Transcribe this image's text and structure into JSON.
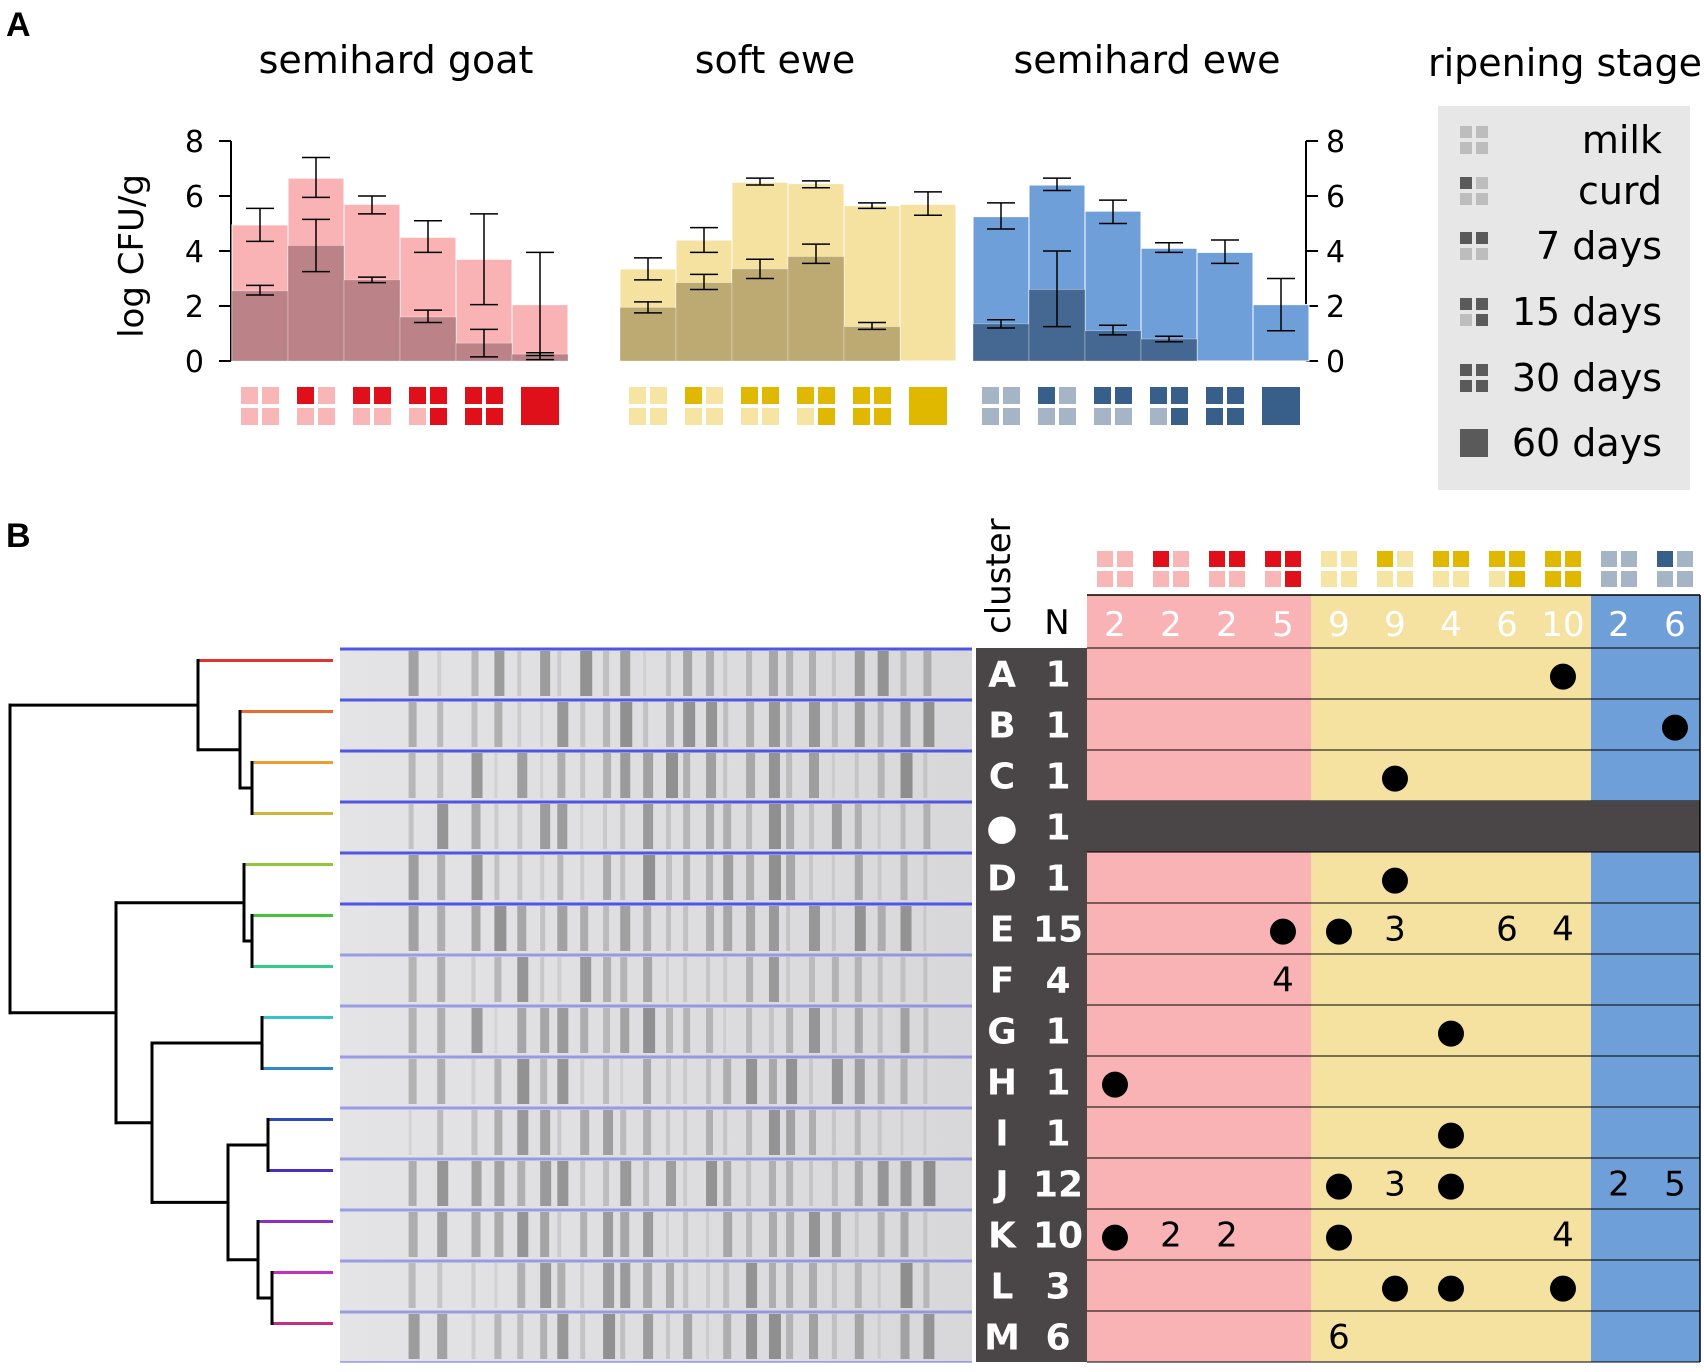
{
  "panels": {
    "a": "A",
    "b": "B"
  },
  "colors": {
    "goat": "#e0101a",
    "goat_light": "#f9b6b6",
    "soft": "#e0b800",
    "soft_light": "#f5e4a2",
    "semi": "#385f89",
    "semi_light": "#a5b5c6",
    "bar_goat": "#f9b3b5",
    "bar_goat_dark": "#bb8288",
    "bar_soft": "#f5e2a1",
    "bar_soft_dark": "#bdaa73",
    "bar_semi": "#6f9fd8",
    "bar_semi_dark": "#446891",
    "legend_bg": "#e7e7e7",
    "legend_icon": "#5a5a5a",
    "legend_icon_light": "#bdbdbd",
    "dark_cell": "#4a4546",
    "row_goat": "#f9b3b5",
    "row_soft": "#f5e2a1",
    "row_semi": "#6f9fd8"
  },
  "chart_data": [
    {
      "type": "bar",
      "title": "semihard goat",
      "ylabel": "log CFU/g",
      "ylim": [
        0,
        8
      ],
      "yticks": [
        0,
        2,
        4,
        6,
        8
      ],
      "categories": [
        "milk",
        "curd",
        "7 days",
        "15 days",
        "30 days",
        "60 days"
      ],
      "series": [
        {
          "name": "upper",
          "values": [
            4.95,
            6.65,
            5.7,
            4.5,
            3.7,
            2.05
          ],
          "err_low": [
            4.35,
            5.95,
            5.35,
            3.95,
            2.05,
            0.05
          ],
          "err_high": [
            5.55,
            7.4,
            6.0,
            5.1,
            5.35,
            3.95
          ]
        },
        {
          "name": "lower",
          "values": [
            2.55,
            4.2,
            2.95,
            1.6,
            0.65,
            0.25
          ],
          "err_low": [
            2.4,
            3.25,
            2.85,
            1.4,
            0.15,
            0.2
          ],
          "err_high": [
            2.75,
            5.15,
            3.05,
            1.85,
            1.15,
            0.3
          ]
        }
      ],
      "stage_icons": [
        "milk",
        "curd",
        "7 days",
        "15 days",
        "30 days",
        "60 days"
      ]
    },
    {
      "type": "bar",
      "title": "soft ewe",
      "ylim": [
        0,
        8
      ],
      "categories": [
        "milk",
        "curd",
        "7 days",
        "15 days",
        "30 days",
        "60 days"
      ],
      "series": [
        {
          "name": "upper",
          "values": [
            3.35,
            4.4,
            6.5,
            6.45,
            5.65,
            5.7
          ],
          "err_low": [
            2.95,
            3.95,
            6.4,
            6.3,
            5.55,
            5.3
          ],
          "err_high": [
            3.75,
            4.85,
            6.65,
            6.55,
            5.75,
            6.15
          ]
        },
        {
          "name": "lower",
          "values": [
            1.95,
            2.85,
            3.35,
            3.8,
            1.25,
            null
          ],
          "err_low": [
            1.75,
            2.6,
            3.0,
            3.55,
            1.15,
            null
          ],
          "err_high": [
            2.15,
            3.15,
            3.7,
            4.25,
            1.4,
            null
          ]
        }
      ],
      "stage_icons": [
        "milk",
        "curd",
        "7 days",
        "15 days",
        "30 days",
        "60 days"
      ]
    },
    {
      "type": "bar",
      "title": "semihard ewe",
      "ylim": [
        0,
        8
      ],
      "yticks": [
        0,
        2,
        4,
        6,
        8
      ],
      "categories": [
        "milk",
        "curd",
        "7 days",
        "15 days",
        "30 days",
        "60 days"
      ],
      "series": [
        {
          "name": "upper",
          "values": [
            5.25,
            6.4,
            5.45,
            4.1,
            3.95,
            2.05
          ],
          "err_low": [
            4.8,
            6.2,
            5.0,
            3.95,
            3.55,
            1.1
          ],
          "err_high": [
            5.75,
            6.65,
            5.85,
            4.3,
            4.4,
            3.0
          ]
        },
        {
          "name": "lower",
          "values": [
            1.35,
            2.6,
            1.1,
            0.8,
            null,
            null
          ],
          "err_low": [
            1.2,
            1.25,
            0.95,
            0.7,
            null,
            null
          ],
          "err_high": [
            1.5,
            4.0,
            1.3,
            0.9,
            null,
            null
          ]
        }
      ],
      "stage_icons": [
        "milk",
        "curd",
        "7 days",
        "15 days",
        "30 days",
        "60 days"
      ]
    },
    {
      "type": "table",
      "columns_n": [
        "2",
        "2",
        "2",
        "5",
        "9",
        "9",
        "4",
        "6",
        "10",
        "2",
        "6"
      ],
      "column_groups": [
        "goat",
        "goat",
        "goat",
        "goat",
        "soft",
        "soft",
        "soft",
        "soft",
        "soft",
        "semi",
        "semi"
      ],
      "column_stages": [
        "milk",
        "curd",
        "7 days",
        "15 days",
        "milk",
        "curd",
        "7 days",
        "15 days",
        "30 days",
        "milk",
        "curd"
      ],
      "rows": [
        {
          "cluster": "A",
          "n": "1",
          "cells": [
            "",
            "",
            "",
            "",
            "",
            "",
            "",
            "",
            "●",
            "",
            ""
          ]
        },
        {
          "cluster": "B",
          "n": "1",
          "cells": [
            "",
            "",
            "",
            "",
            "",
            "",
            "",
            "",
            "",
            "",
            "●"
          ]
        },
        {
          "cluster": "C",
          "n": "1",
          "cells": [
            "",
            "",
            "",
            "",
            "",
            "●",
            "",
            "",
            "",
            "",
            ""
          ]
        },
        {
          "cluster": "●",
          "n": "1",
          "dark": true,
          "cells": [
            "",
            "",
            "",
            "",
            "",
            "",
            "",
            "",
            "",
            "",
            ""
          ]
        },
        {
          "cluster": "D",
          "n": "1",
          "cells": [
            "",
            "",
            "",
            "",
            "",
            "●",
            "",
            "",
            "",
            "",
            ""
          ]
        },
        {
          "cluster": "E",
          "n": "15",
          "cells": [
            "",
            "",
            "",
            "●",
            "●",
            "3",
            "",
            "6",
            "4",
            "",
            ""
          ]
        },
        {
          "cluster": "F",
          "n": "4",
          "cells": [
            "",
            "",
            "",
            "4",
            "",
            "",
            "",
            "",
            "",
            "",
            ""
          ]
        },
        {
          "cluster": "G",
          "n": "1",
          "cells": [
            "",
            "",
            "",
            "",
            "",
            "",
            "●",
            "",
            "",
            "",
            ""
          ]
        },
        {
          "cluster": "H",
          "n": "1",
          "cells": [
            "●",
            "",
            "",
            "",
            "",
            "",
            "",
            "",
            "",
            "",
            ""
          ]
        },
        {
          "cluster": "I",
          "n": "1",
          "cells": [
            "",
            "",
            "",
            "",
            "",
            "",
            "●",
            "",
            "",
            "",
            ""
          ]
        },
        {
          "cluster": "J",
          "n": "12",
          "cells": [
            "",
            "",
            "",
            "",
            "●",
            "3",
            "●",
            "",
            "",
            "2",
            "5"
          ]
        },
        {
          "cluster": "K",
          "n": "10",
          "cells": [
            "●",
            "2",
            "2",
            "",
            "●",
            "",
            "",
            "",
            "4",
            "",
            ""
          ]
        },
        {
          "cluster": "L",
          "n": "3",
          "cells": [
            "",
            "",
            "",
            "",
            "",
            "●",
            "●",
            "",
            "●",
            "",
            ""
          ]
        },
        {
          "cluster": "M",
          "n": "6",
          "cells": [
            "",
            "",
            "",
            "",
            "6",
            "",
            "",
            "",
            "",
            "",
            ""
          ]
        }
      ]
    }
  ],
  "legend": {
    "title": "ripening stage",
    "items": [
      "milk",
      "curd",
      "7 days",
      "15 days",
      "30 days",
      "60 days"
    ]
  },
  "table_headers": {
    "cluster": "cluster",
    "n": "N"
  },
  "dendrogram": {
    "leaf_colors": [
      "#e1342f",
      "#e76c2e",
      "#ef9c30",
      "#cdb43a",
      "#95c53e",
      "#45c33a",
      "#2fcd88",
      "#35c3cc",
      "#2f8bc7",
      "#2f4bb7",
      "#4b2fc0",
      "#8f2fbf",
      "#c42fc0",
      "#c42f84"
    ]
  }
}
